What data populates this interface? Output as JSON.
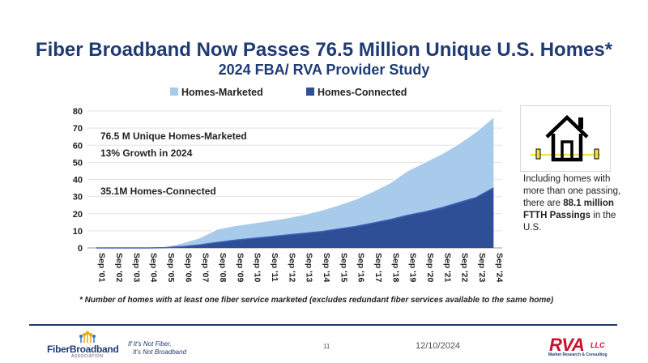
{
  "slide": {
    "title": "Fiber Broadband Now Passes 76.5 Million Unique U.S. Homes*",
    "subtitle": "2024 FBA/ RVA Provider Study",
    "footnote": "* Number of homes with at least one fiber service marketed (excludes redundant fiber services available to the same home)",
    "side_note": {
      "text_before": "Including homes with more than one passing, there are",
      "highlight": "88.1 million FTTH Passings",
      "text_after": "in the U.S."
    },
    "footer": {
      "logo_text": "FiberBroadband",
      "logo_sub": "ASSOCIATION",
      "tagline_line1": "If It's Not Fiber,",
      "tagline_line2": "It's Not Broadband",
      "page_number": "11",
      "date": "12/10/2024",
      "rva_logo": "RVA",
      "rva_llc": "LLC",
      "rva_sub": "Market Research & Consulting"
    },
    "colors": {
      "title": "#1F3B73",
      "marketed_fill": "#A9CBEB",
      "connected_fill": "#2E4E96",
      "accent_red": "#C8102E",
      "highlight_yellow": "#F5E03A"
    },
    "icons": [
      "house-icon"
    ]
  },
  "chart_data": {
    "type": "area",
    "title": "",
    "xlabel": "",
    "ylabel": "",
    "ylim": [
      0,
      80
    ],
    "yticks": [
      0,
      10,
      20,
      30,
      40,
      50,
      60,
      70,
      80
    ],
    "grid": true,
    "legend_position": "top",
    "categories": [
      "Sep '01",
      "Sep '02",
      "Sep '03",
      "Sep '04",
      "Sep '05",
      "Sep '06",
      "Sep '07",
      "Sep '08",
      "Sep '09",
      "Sep '10",
      "Sep '11",
      "Sep '12",
      "Sep '13",
      "Sep '14",
      "Sep '15",
      "Sep '16",
      "Sep '17",
      "Sep '18",
      "Sep '19",
      "Sep '20",
      "Sep '21",
      "Sep '22",
      "Sep '23",
      "Sep '24"
    ],
    "series": [
      {
        "name": "Homes-Marketed",
        "color": "#A9CBEB",
        "values": [
          0,
          0,
          0,
          0,
          0.8,
          3,
          6,
          11,
          13,
          14.5,
          16,
          17.5,
          19.5,
          22,
          25,
          28.5,
          33,
          38,
          45,
          50,
          55,
          61,
          68,
          76.5
        ]
      },
      {
        "name": "Homes-Connected",
        "color": "#2E4E96",
        "values": [
          0,
          0,
          0,
          0,
          0.2,
          0.8,
          1.8,
          3.2,
          4.5,
          5.5,
          6.5,
          7.5,
          8.5,
          9.5,
          11,
          12.5,
          14.5,
          16.5,
          19,
          21,
          23.5,
          26.5,
          29.5,
          35.1
        ]
      }
    ],
    "annotations": [
      "76.5 M Unique Homes-Marketed",
      "13% Growth in 2024",
      "35.1M Homes-Connected"
    ]
  }
}
